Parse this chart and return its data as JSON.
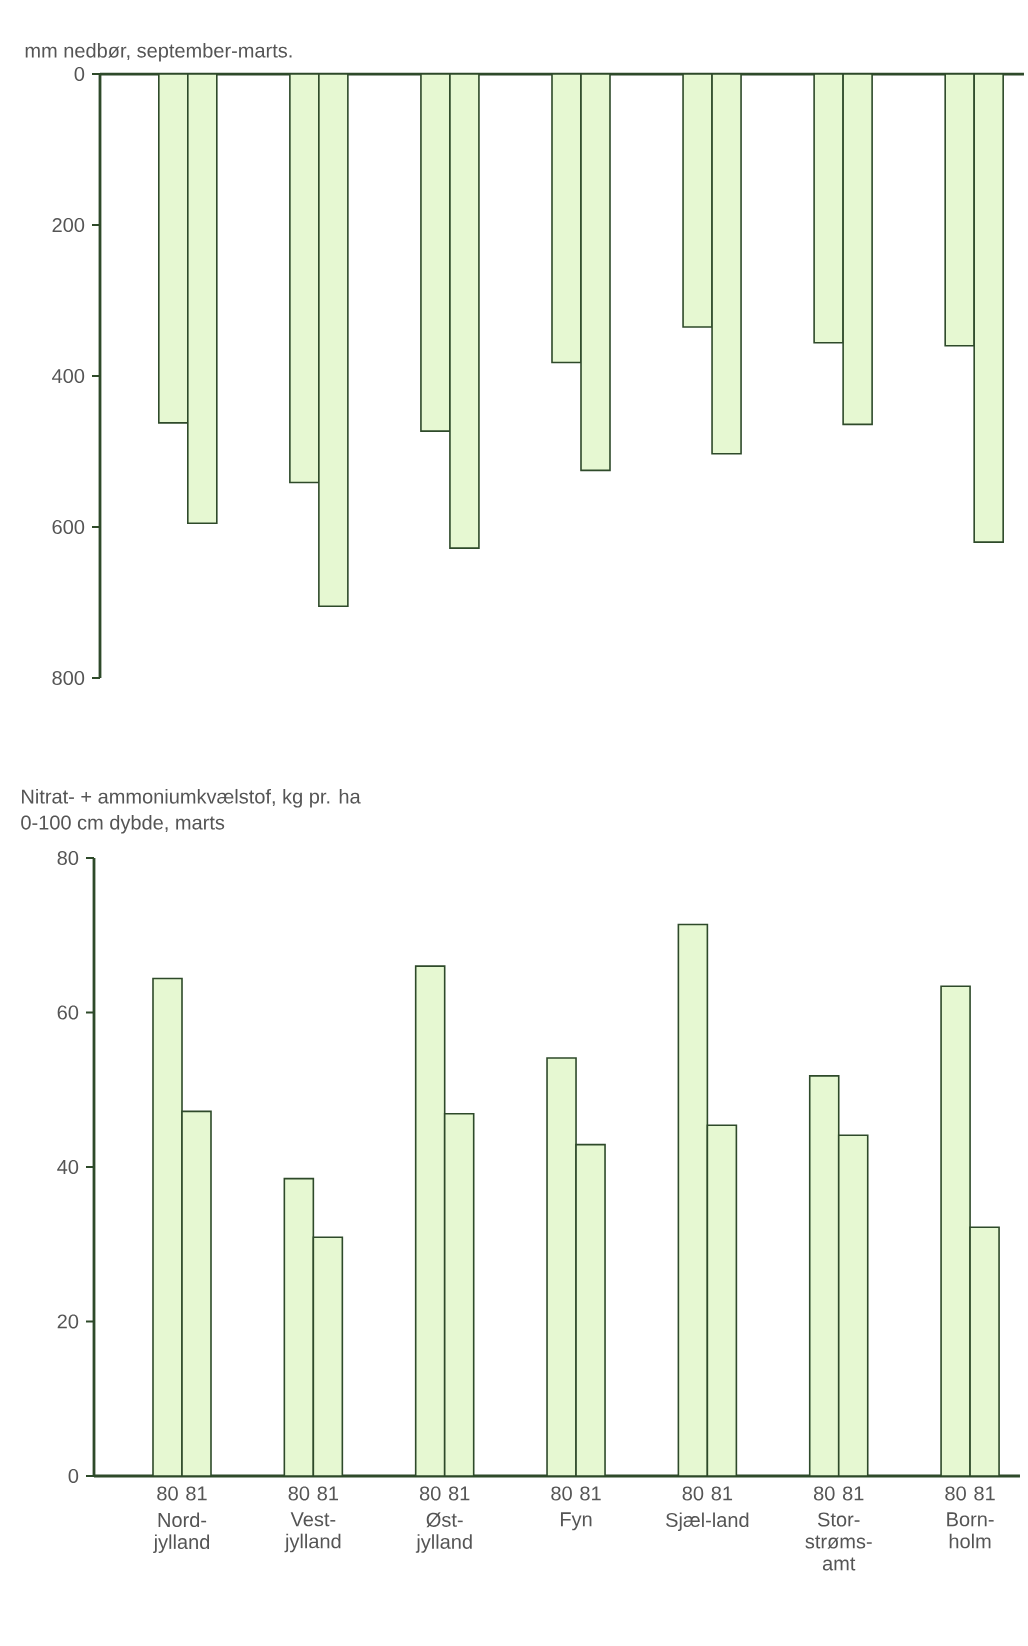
{
  "chart_data": [
    {
      "type": "bar",
      "title": "mm nedbør, september-marts.",
      "categories": [
        null,
        null,
        null,
        null,
        null,
        null,
        null
      ],
      "tick_labels": "y",
      "ylim": [
        800,
        0
      ],
      "yticks": [
        0,
        200,
        400,
        600,
        800
      ],
      "series": [
        {
          "color": "#e6f8d2",
          "values": [
            462,
            541,
            473,
            382,
            335,
            356,
            360
          ]
        },
        {
          "color": "#e6f8d2",
          "values": [
            595,
            705,
            628,
            525,
            503,
            464,
            620
          ]
        }
      ]
    },
    {
      "type": "bar",
      "title": "Nitrat- + ammoniumkvælstof, kg pr. ha",
      "subtitle": "0-100 cm dybde, marts",
      "categories": [
        "Nord-jylland",
        "Vest-jylland",
        "Øst-jylland",
        "Fyn",
        "Sjæl-land",
        "Stor-strøms-amt",
        "Born-holm"
      ],
      "ylim": [
        0,
        80
      ],
      "yticks": [
        0,
        20,
        40,
        60,
        80
      ],
      "series": [
        {
          "name": "80",
          "color": "#e6f8d2",
          "values": [
            64.4,
            38.5,
            66,
            54.1,
            71.4,
            51.8,
            63.4
          ]
        },
        {
          "name": "81",
          "color": "#e6f8d2",
          "values": [
            47.2,
            30.9,
            46.9,
            42.9,
            45.4,
            44.1,
            32.2
          ]
        }
      ]
    }
  ]
}
